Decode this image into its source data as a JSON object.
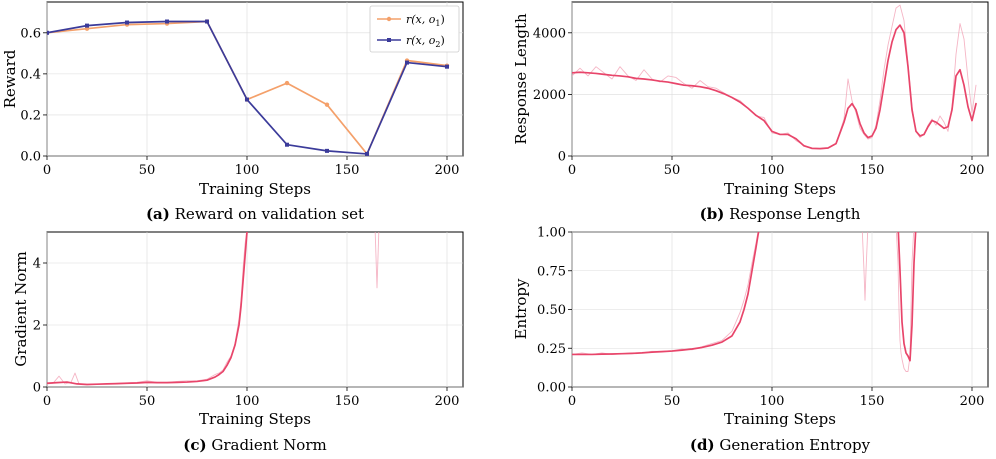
{
  "colors": {
    "orange": "#f4a06a",
    "blue": "#3b3b9a",
    "red": "#e8456a",
    "red_light": "#f3a3b6",
    "grid": "#dcdcdc"
  },
  "chart_data": [
    {
      "type": "line",
      "panel": "a",
      "caption_letter": "(a)",
      "caption_text": " Reward on validation set",
      "xlabel": "Training Steps",
      "ylabel": "Reward",
      "xlim": [
        0,
        208
      ],
      "ylim": [
        0,
        0.75
      ],
      "xticks": [
        0,
        50,
        100,
        150,
        200
      ],
      "yticks": [
        0.0,
        0.2,
        0.4,
        0.6
      ],
      "ytick_labels": [
        "0.0",
        "0.2",
        "0.4",
        "0.6"
      ],
      "legend_position": "top-right",
      "series": [
        {
          "name": "r(x, o1)",
          "legend_main": "r(x, o",
          "legend_sub": "1",
          "legend_end": ")",
          "color": "orange",
          "marker": "circle",
          "x": [
            0,
            20,
            40,
            60,
            80,
            100,
            120,
            140,
            160,
            180,
            200
          ],
          "y": [
            0.6,
            0.62,
            0.64,
            0.645,
            0.655,
            0.275,
            0.355,
            0.25,
            0.01,
            0.465,
            0.44
          ]
        },
        {
          "name": "r(x, o2)",
          "legend_main": "r(x, o",
          "legend_sub": "2",
          "legend_end": ")",
          "color": "blue",
          "marker": "square",
          "x": [
            0,
            20,
            40,
            60,
            80,
            100,
            120,
            140,
            160,
            180,
            200
          ],
          "y": [
            0.6,
            0.635,
            0.65,
            0.655,
            0.655,
            0.275,
            0.055,
            0.025,
            0.01,
            0.455,
            0.435
          ]
        }
      ]
    },
    {
      "type": "line",
      "panel": "b",
      "caption_letter": "(b)",
      "caption_text": " Response Length",
      "xlabel": "Training Steps",
      "ylabel": "Response Length",
      "xlim": [
        0,
        208
      ],
      "ylim": [
        0,
        5000
      ],
      "xticks": [
        0,
        50,
        100,
        150,
        200
      ],
      "yticks": [
        0,
        2000,
        4000
      ],
      "ytick_labels": [
        "0",
        "2000",
        "4000"
      ],
      "series": [
        {
          "name": "raw",
          "color": "red_light",
          "x": [
            0,
            4,
            8,
            12,
            16,
            20,
            24,
            28,
            32,
            36,
            40,
            44,
            48,
            52,
            56,
            60,
            64,
            68,
            72,
            76,
            80,
            84,
            88,
            92,
            96,
            100,
            104,
            108,
            112,
            116,
            120,
            124,
            128,
            132,
            136,
            138,
            140,
            142,
            144,
            146,
            148,
            150,
            152,
            154,
            156,
            158,
            160,
            162,
            164,
            166,
            168,
            170,
            172,
            174,
            176,
            178,
            180,
            182,
            184,
            186,
            188,
            190,
            192,
            194,
            196,
            198,
            200,
            202
          ],
          "y": [
            2600,
            2850,
            2600,
            2900,
            2700,
            2500,
            2900,
            2600,
            2450,
            2800,
            2500,
            2400,
            2600,
            2550,
            2350,
            2200,
            2450,
            2250,
            2200,
            2050,
            1900,
            1800,
            1550,
            1300,
            1250,
            750,
            700,
            750,
            500,
            350,
            230,
            230,
            250,
            400,
            1200,
            2500,
            1800,
            1400,
            900,
            700,
            550,
            600,
            1000,
            1800,
            2800,
            3600,
            4200,
            4800,
            4900,
            4400,
            3000,
            1600,
            800,
            600,
            700,
            1000,
            1200,
            1000,
            1300,
            1100,
            800,
            1600,
            3300,
            4300,
            3800,
            2500,
            1400,
            2300
          ]
        },
        {
          "name": "smoothed",
          "color": "red",
          "x": [
            0,
            4,
            8,
            12,
            16,
            20,
            24,
            28,
            32,
            36,
            40,
            44,
            48,
            52,
            56,
            60,
            64,
            68,
            72,
            76,
            80,
            84,
            88,
            92,
            96,
            100,
            104,
            108,
            112,
            116,
            120,
            124,
            128,
            132,
            136,
            138,
            140,
            142,
            144,
            146,
            148,
            150,
            152,
            154,
            156,
            158,
            160,
            162,
            164,
            166,
            168,
            170,
            172,
            174,
            176,
            178,
            180,
            182,
            184,
            186,
            188,
            190,
            192,
            194,
            196,
            198,
            200,
            202
          ],
          "y": [
            2700,
            2720,
            2700,
            2680,
            2650,
            2620,
            2600,
            2570,
            2520,
            2500,
            2470,
            2430,
            2400,
            2350,
            2300,
            2280,
            2250,
            2200,
            2120,
            2020,
            1900,
            1750,
            1550,
            1320,
            1150,
            800,
            700,
            700,
            560,
            330,
            250,
            240,
            260,
            400,
            1100,
            1550,
            1700,
            1500,
            1050,
            750,
            600,
            650,
            900,
            1500,
            2300,
            3100,
            3700,
            4100,
            4250,
            4000,
            2900,
            1500,
            800,
            650,
            700,
            950,
            1150,
            1100,
            1000,
            900,
            950,
            1500,
            2600,
            2800,
            2300,
            1600,
            1150,
            1700
          ]
        }
      ]
    },
    {
      "type": "line",
      "panel": "c",
      "caption_letter": "(c)",
      "caption_text": " Gradient Norm",
      "xlabel": "Training Steps",
      "ylabel": "Gradient Norm",
      "xlim": [
        0,
        208
      ],
      "ylim": [
        0,
        5
      ],
      "xticks": [
        0,
        50,
        100,
        150,
        200
      ],
      "yticks": [
        0,
        2,
        4
      ],
      "ytick_labels": [
        "0",
        "2",
        "4"
      ],
      "series": [
        {
          "name": "raw",
          "color": "red_light",
          "x": [
            0,
            3,
            6,
            9,
            12,
            14,
            16,
            20,
            25,
            30,
            35,
            40,
            45,
            50,
            55,
            60,
            65,
            70,
            75,
            80,
            84,
            86,
            88,
            90,
            92,
            94,
            96,
            97,
            98,
            99,
            100,
            101,
            102
          ],
          "y": [
            0.1,
            0.12,
            0.35,
            0.1,
            0.15,
            0.45,
            0.1,
            0.08,
            0.1,
            0.1,
            0.12,
            0.13,
            0.15,
            0.2,
            0.15,
            0.15,
            0.18,
            0.2,
            0.2,
            0.25,
            0.4,
            0.45,
            0.55,
            0.8,
            1.0,
            1.4,
            2.2,
            2.8,
            3.8,
            4.6,
            5.1,
            5.2,
            5.3
          ]
        },
        {
          "name": "smoothed",
          "color": "red",
          "x": [
            0,
            5,
            10,
            15,
            20,
            25,
            30,
            35,
            40,
            45,
            50,
            55,
            60,
            65,
            70,
            75,
            80,
            84,
            86,
            88,
            90,
            92,
            94,
            96,
            97,
            98,
            99,
            100,
            101
          ],
          "y": [
            0.12,
            0.14,
            0.16,
            0.1,
            0.08,
            0.09,
            0.1,
            0.11,
            0.12,
            0.13,
            0.15,
            0.14,
            0.14,
            0.15,
            0.16,
            0.18,
            0.22,
            0.32,
            0.4,
            0.5,
            0.7,
            0.95,
            1.35,
            2.0,
            2.6,
            3.4,
            4.2,
            5.0,
            5.2
          ]
        },
        {
          "name": "raw-spike",
          "color": "red_light",
          "x": [
            164,
            164.5,
            165,
            165.5,
            166
          ],
          "y": [
            5.2,
            4.2,
            3.2,
            4.2,
            5.2
          ]
        }
      ]
    },
    {
      "type": "line",
      "panel": "d",
      "caption_letter": "(d)",
      "caption_text": " Generation Entropy",
      "xlabel": "Training Steps",
      "ylabel": "Entropy",
      "xlim": [
        0,
        208
      ],
      "ylim": [
        0,
        1
      ],
      "xticks": [
        0,
        50,
        100,
        150,
        200
      ],
      "yticks": [
        0.0,
        0.25,
        0.5,
        0.75,
        1.0
      ],
      "ytick_labels": [
        "0.00",
        "0.25",
        "0.50",
        "0.75",
        "1.00"
      ],
      "series": [
        {
          "name": "raw",
          "color": "red_light",
          "x": [
            0,
            5,
            10,
            15,
            20,
            25,
            30,
            35,
            40,
            45,
            50,
            55,
            60,
            65,
            70,
            75,
            80,
            84,
            86,
            88,
            90,
            92,
            93,
            94
          ],
          "y": [
            0.21,
            0.22,
            0.21,
            0.22,
            0.21,
            0.215,
            0.22,
            0.22,
            0.23,
            0.23,
            0.235,
            0.245,
            0.24,
            0.26,
            0.28,
            0.3,
            0.36,
            0.48,
            0.56,
            0.66,
            0.8,
            0.93,
            1.0,
            1.05
          ]
        },
        {
          "name": "smoothed",
          "color": "red",
          "x": [
            0,
            5,
            10,
            15,
            20,
            25,
            30,
            35,
            40,
            45,
            50,
            55,
            60,
            65,
            70,
            75,
            80,
            84,
            86,
            88,
            90,
            92,
            93,
            94
          ],
          "y": [
            0.21,
            0.21,
            0.21,
            0.212,
            0.213,
            0.215,
            0.217,
            0.22,
            0.225,
            0.228,
            0.232,
            0.238,
            0.245,
            0.255,
            0.27,
            0.29,
            0.33,
            0.42,
            0.5,
            0.6,
            0.75,
            0.9,
            0.98,
            1.05
          ]
        },
        {
          "name": "raw-dip-1",
          "color": "red_light",
          "x": [
            145,
            146,
            146.5,
            147,
            148
          ],
          "y": [
            1.05,
            0.75,
            0.56,
            0.75,
            1.05
          ]
        },
        {
          "name": "raw-dip-2",
          "color": "red_light",
          "x": [
            162,
            163,
            163.5,
            164,
            164.5,
            165,
            166,
            167,
            168,
            169,
            169.5,
            170,
            171
          ],
          "y": [
            1.05,
            0.8,
            0.5,
            0.3,
            0.22,
            0.18,
            0.12,
            0.1,
            0.1,
            0.2,
            0.5,
            0.8,
            1.05
          ]
        },
        {
          "name": "smoothed-dip",
          "color": "red",
          "x": [
            163,
            164,
            165,
            166,
            167,
            168,
            169,
            170,
            171,
            172
          ],
          "y": [
            1.05,
            0.75,
            0.42,
            0.28,
            0.22,
            0.2,
            0.17,
            0.4,
            0.8,
            1.05
          ]
        }
      ]
    }
  ]
}
